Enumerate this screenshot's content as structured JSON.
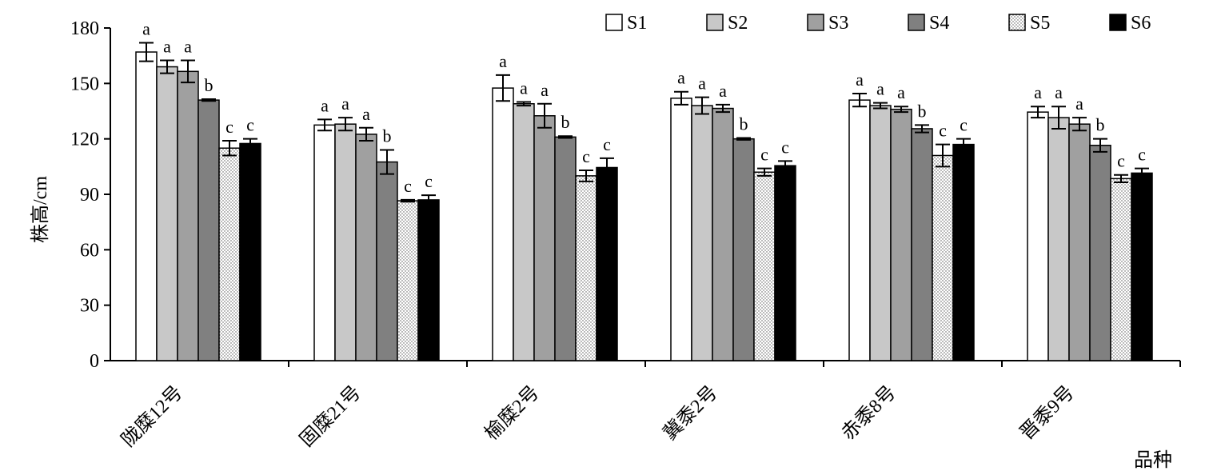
{
  "chart_data": {
    "type": "bar",
    "xlabel": "品种",
    "ylabel": "株高/cm",
    "ylim": [
      0,
      180
    ],
    "yticks": [
      0,
      30,
      60,
      90,
      120,
      150,
      180
    ],
    "categories": [
      "陇糜12号",
      "固糜21号",
      "榆糜2号",
      "冀黍2号",
      "赤黍8号",
      "晋黍9号"
    ],
    "legend_position": "top-right",
    "series": [
      {
        "name": "S1",
        "color": "#ffffff",
        "pattern": "solid",
        "values": [
          167,
          127.5,
          147.5,
          142,
          141,
          134.5
        ],
        "errors": [
          5,
          3,
          7,
          3.5,
          3.5,
          3
        ],
        "letters": [
          "a",
          "a",
          "a",
          "a",
          "a",
          "a"
        ]
      },
      {
        "name": "S2",
        "color": "#c8c8c8",
        "pattern": "solid",
        "values": [
          159,
          128,
          139,
          138,
          138,
          131.5
        ],
        "errors": [
          3.5,
          3.5,
          1,
          4.5,
          1.5,
          6
        ],
        "letters": [
          "a",
          "a",
          "a",
          "a",
          "a",
          "a"
        ]
      },
      {
        "name": "S3",
        "color": "#a0a0a0",
        "pattern": "solid",
        "values": [
          156.5,
          122.5,
          132.5,
          136.5,
          136,
          128
        ],
        "errors": [
          6,
          3.5,
          6.5,
          2,
          1.5,
          3.5
        ],
        "letters": [
          "a",
          "a",
          "a",
          "a",
          "a",
          "a"
        ]
      },
      {
        "name": "S4",
        "color": "#808080",
        "pattern": "solid",
        "values": [
          141,
          107.5,
          121,
          120,
          125.5,
          116.5
        ],
        "errors": [
          0.5,
          6.5,
          0.5,
          0.5,
          2,
          3.5
        ],
        "letters": [
          "b",
          "b",
          "b",
          "b",
          "b",
          "b"
        ]
      },
      {
        "name": "S5",
        "color": "#ffffff",
        "pattern": "dotted",
        "values": [
          115,
          86.5,
          100,
          102,
          111,
          98.5
        ],
        "errors": [
          4,
          0.5,
          3,
          2,
          6,
          2
        ],
        "letters": [
          "c",
          "c",
          "c",
          "c",
          "c",
          "c"
        ]
      },
      {
        "name": "S6",
        "color": "#000000",
        "pattern": "solid",
        "values": [
          117.5,
          87,
          104.5,
          105.5,
          117,
          101.5
        ],
        "errors": [
          2.5,
          2.5,
          5,
          2.5,
          3,
          2.5
        ],
        "letters": [
          "c",
          "c",
          "c",
          "c",
          "c",
          "c"
        ]
      }
    ]
  }
}
